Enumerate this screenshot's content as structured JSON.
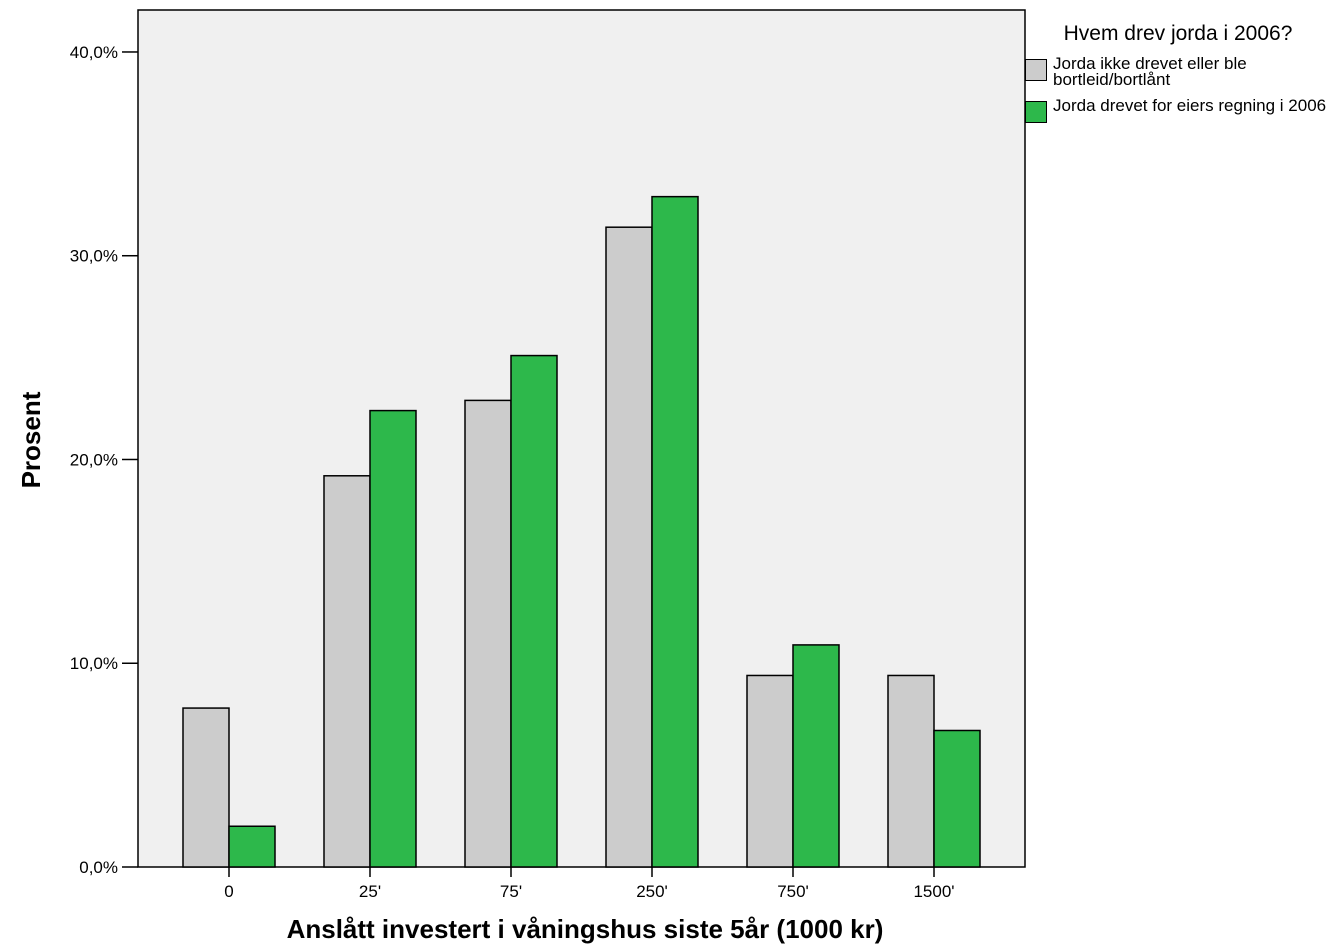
{
  "chart_data": {
    "type": "bar",
    "x_label": "Anslått investert i våningshus siste 5år (1000 kr)",
    "y_label": "Prosent",
    "legend_title": "Hvem drev jorda i 2006?",
    "categories": [
      "0",
      "25'",
      "75'",
      "250'",
      "750'",
      "1500'"
    ],
    "series": [
      {
        "name": "Jorda ikke drevet eller ble bortleid/bortlånt",
        "color": "#cccccc",
        "values": [
          7.8,
          19.2,
          22.9,
          31.4,
          9.4,
          9.4
        ]
      },
      {
        "name": "Jorda drevet for eiers regning i 2006",
        "color": "#2db84b",
        "values": [
          2.0,
          22.4,
          25.1,
          32.9,
          10.9,
          6.7
        ]
      }
    ],
    "ylim": [
      0,
      42.06
    ],
    "yticks": [
      {
        "value": 0,
        "label": "0,0%"
      },
      {
        "value": 10,
        "label": "10,0%"
      },
      {
        "value": 20,
        "label": "20,0%"
      },
      {
        "value": 30,
        "label": "30,0%"
      },
      {
        "value": 40,
        "label": "40,0%"
      }
    ],
    "background": "#f0f0f0"
  }
}
